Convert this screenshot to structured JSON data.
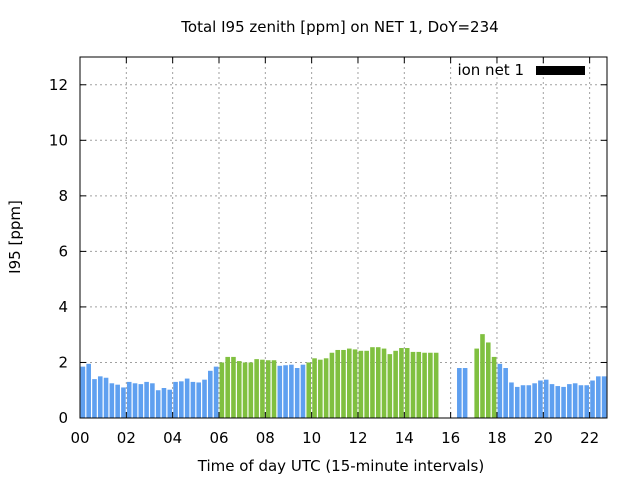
{
  "chart_data": {
    "type": "bar",
    "title": "Total I95 zenith [ppm] on NET 1, DoY=234",
    "xlabel": "Time of day UTC (15-minute intervals)",
    "ylabel": "I95 [ppm]",
    "xlim": [
      0,
      22.75
    ],
    "ylim": [
      0,
      13
    ],
    "x_ticks": [
      "00",
      "02",
      "04",
      "06",
      "08",
      "10",
      "12",
      "14",
      "16",
      "18",
      "20",
      "22"
    ],
    "y_ticks": [
      "0",
      "2",
      "4",
      "6",
      "8",
      "10",
      "12"
    ],
    "grid": true,
    "legend": {
      "position": "top-right",
      "entries": [
        {
          "label": "ion net 1",
          "color": "#000000"
        }
      ]
    },
    "colors": {
      "low": "#5fa0f0",
      "high": "#80c040"
    },
    "series": [
      {
        "x": [
          0,
          0.25,
          0.5,
          0.75,
          1,
          1.25,
          1.5,
          1.75,
          2,
          2.25,
          2.5,
          2.75,
          3,
          3.25,
          3.5,
          3.75,
          4,
          4.25,
          4.5,
          4.75,
          5,
          5.25,
          5.5,
          5.75,
          6,
          6.25,
          6.5,
          6.75,
          7,
          7.25,
          7.5,
          7.75,
          8,
          8.25,
          8.5,
          8.75,
          9,
          9.25,
          9.5,
          9.75,
          10,
          10.25,
          10.5,
          10.75,
          11,
          11.25,
          11.5,
          11.75,
          12,
          12.25,
          12.5,
          12.75,
          13,
          13.25,
          13.5,
          13.75,
          14,
          14.25,
          14.5,
          14.75,
          15,
          15.25,
          16.25,
          16.5,
          17,
          17.25,
          17.5,
          17.75,
          18,
          18.25,
          18.5,
          18.75,
          19,
          19.25,
          19.5,
          19.75,
          20,
          20.25,
          20.5,
          20.75,
          21,
          21.25,
          21.5,
          21.75,
          22,
          22.25,
          22.5
        ],
        "values": [
          1.85,
          1.95,
          1.4,
          1.5,
          1.45,
          1.25,
          1.2,
          1.1,
          1.3,
          1.25,
          1.22,
          1.3,
          1.25,
          1.0,
          1.08,
          1.02,
          1.3,
          1.32,
          1.42,
          1.3,
          1.28,
          1.38,
          1.7,
          1.85,
          2.0,
          2.2,
          2.2,
          2.05,
          2.0,
          2.0,
          2.12,
          2.1,
          2.08,
          2.08,
          1.88,
          1.9,
          1.92,
          1.8,
          1.92,
          2.0,
          2.15,
          2.1,
          2.15,
          2.35,
          2.45,
          2.45,
          2.5,
          2.47,
          2.42,
          2.42,
          2.55,
          2.55,
          2.5,
          2.3,
          2.42,
          2.52,
          2.52,
          2.38,
          2.38,
          2.35,
          2.35,
          2.35,
          1.8,
          1.8,
          2.5,
          3.02,
          2.72,
          2.2,
          1.95,
          1.8,
          1.28,
          1.12,
          1.18,
          1.18,
          1.25,
          1.35,
          1.38,
          1.22,
          1.15,
          1.12,
          1.22,
          1.25,
          1.18,
          1.18,
          1.35,
          1.5,
          1.5
        ]
      }
    ]
  }
}
